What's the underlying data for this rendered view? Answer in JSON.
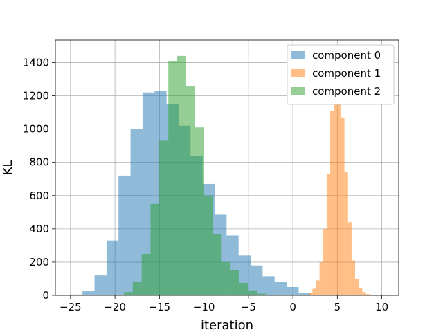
{
  "chart_data": {
    "type": "bar",
    "subtype": "overlaid-histogram",
    "title": "",
    "xlabel": "iteration",
    "ylabel": "KL",
    "xlim": [
      -26.7,
      11.9
    ],
    "ylim": [
      0,
      1535
    ],
    "xticks": [
      -25,
      -20,
      -15,
      -10,
      -5,
      0,
      5,
      10
    ],
    "yticks": [
      0,
      200,
      400,
      600,
      800,
      1000,
      1200,
      1400
    ],
    "grid": true,
    "legend_position": "top-right",
    "series": [
      {
        "name": "component 0",
        "color": "#1f77b4",
        "alpha": 0.5,
        "bin_width": 1.35,
        "bin_starts": [
          -25.0,
          -23.65,
          -22.3,
          -20.95,
          -19.6,
          -18.25,
          -16.9,
          -15.55,
          -14.2,
          -12.85,
          -11.5,
          -10.15,
          -8.8,
          -7.45,
          -6.1,
          -4.75,
          -3.4,
          -2.05,
          -0.7,
          0.65
        ],
        "counts": [
          5,
          25,
          120,
          330,
          720,
          1000,
          1220,
          1230,
          1150,
          1020,
          840,
          670,
          485,
          360,
          240,
          180,
          115,
          80,
          50,
          15
        ]
      },
      {
        "name": "component 1",
        "color": "#ff7f0e",
        "alpha": 0.5,
        "bin_width": 0.4,
        "bin_starts": [
          1.8,
          2.2,
          2.6,
          3.0,
          3.4,
          3.8,
          4.2,
          4.6,
          5.0,
          5.4,
          5.8,
          6.2,
          6.6,
          7.0,
          7.4,
          7.8,
          8.2,
          8.6,
          9.0
        ],
        "counts": [
          15,
          40,
          90,
          200,
          400,
          730,
          1110,
          1330,
          1370,
          1070,
          740,
          440,
          210,
          100,
          45,
          20,
          8,
          4,
          1
        ]
      },
      {
        "name": "component 2",
        "color": "#2ca02c",
        "alpha": 0.5,
        "bin_width": 1.0,
        "bin_starts": [
          -19.0,
          -18.0,
          -17.0,
          -16.0,
          -15.0,
          -14.0,
          -13.0,
          -12.0,
          -11.0,
          -10.0,
          -9.0,
          -8.0,
          -7.0,
          -6.0,
          -5.0,
          -4.0
        ],
        "counts": [
          20,
          80,
          250,
          550,
          930,
          1410,
          1440,
          1260,
          1010,
          600,
          370,
          200,
          150,
          75,
          30,
          10
        ]
      }
    ]
  }
}
